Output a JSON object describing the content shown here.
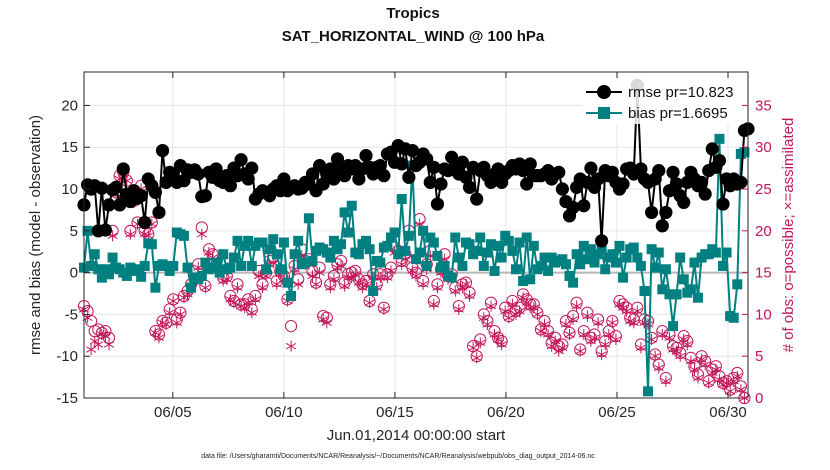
{
  "chart_data": {
    "type": "line",
    "title": "Tropics",
    "subtitle": "SAT_HORIZONTAL_WIND @ 100 hPa",
    "xlabel": "Jun.01,2014 00:00:00 start",
    "ylabel": "rmse and bias (model - observation)",
    "y2label": "# of obs: o=possible; ×=assimilated",
    "footnote": "data file: /Users/gharamti/Documents/NCAR/Reanalysis/~/Documents/NCAR/Reanalysis/webpub/obs_diag_output_2014-06.nc",
    "xlim": [
      1.0,
      30.9
    ],
    "ylim": [
      -15,
      24
    ],
    "y2lim": [
      0,
      39
    ],
    "xticks": [
      5,
      10,
      15,
      20,
      25,
      30
    ],
    "xtick_labels": [
      "06/05",
      "06/10",
      "06/15",
      "06/20",
      "06/25",
      "06/30"
    ],
    "yticks": [
      -15,
      -10,
      -5,
      0,
      5,
      10,
      15,
      20
    ],
    "y2ticks": [
      0,
      5,
      10,
      15,
      20,
      25,
      30,
      35
    ],
    "grid": true,
    "legend": {
      "position": "top-right",
      "entries": [
        "rmse pr=10.823",
        "bias pr=1.6695"
      ]
    },
    "colors": {
      "rmse": "#000000",
      "bias": "#008080",
      "obs": "#c2185b",
      "zero_line": "#b8b8b8",
      "grid": "#e6e6e6"
    },
    "series": [
      {
        "name": "rmse pr=10.823",
        "axis": "left",
        "marker": "circle",
        "values": [
          8.1,
          10.5,
          10.0,
          10.4,
          5.0,
          10.1,
          5.1,
          8.1,
          9.9,
          10.2,
          8.1,
          12.4,
          9.4,
          8.5,
          9.8,
          8.9,
          9.2,
          6.0,
          11.2,
          10.4,
          9.6,
          7.2,
          14.6,
          10.8,
          12.0,
          11.6,
          10.8,
          12.8,
          11.0,
          12.3,
          12.0,
          12.3,
          11.8,
          9.1,
          9.2,
          12.0,
          11.4,
          12.4,
          11.0,
          10.8,
          11.6,
          10.4,
          12.5,
          11.6,
          13.5,
          11.8,
          11.2,
          12.5,
          8.8,
          9.4,
          9.8,
          9.6,
          9.2,
          10.0,
          10.4,
          9.8,
          11.2,
          9.8,
          10.2,
          10.4,
          10.0,
          10.1,
          10.8,
          10.6,
          11.8,
          9.8,
          12.8,
          10.6,
          11.8,
          12.4,
          11.2,
          13.6,
          12.4,
          11.6,
          12.8,
          12.4,
          12.8,
          11.2,
          12.4,
          14.0,
          12.6,
          11.8,
          12.6,
          12.8,
          11.6,
          14.2,
          14.4,
          13.2,
          15.2,
          13.0,
          14.8,
          11.4,
          14.6,
          12.8,
          13.2,
          14.2,
          13.6,
          10.8,
          12.6,
          8.2,
          10.6,
          12.4,
          12.2,
          13.8,
          12.6,
          11.8,
          13.2,
          11.4,
          10.2,
          12.6,
          8.8,
          12.2,
          12.6,
          11.6,
          10.8,
          11.8,
          12.4,
          10.8,
          11.8,
          12.2,
          12.8,
          12.4,
          13.0,
          12.2,
          10.6,
          13.0,
          11.6,
          11.6,
          11.6,
          11.8,
          12.2,
          11.2,
          11.8,
          12.0,
          10.0,
          8.5,
          6.8,
          7.8,
          10.2,
          11.2,
          8.0,
          10.8,
          12.5,
          10.2,
          11.2,
          3.8,
          12.2,
          11.6,
          12.0,
          10.8,
          10.0,
          10.6,
          12.4,
          12.5,
          11.8,
          22.4,
          12.4,
          11.2,
          10.8,
          7.2,
          11.2,
          12.2,
          5.6,
          7.2,
          9.8,
          12.0,
          10.6,
          9.2,
          8.4,
          10.8,
          12.0,
          11.2,
          10.4,
          10.8,
          9.4,
          12.2,
          14.8,
          12.6,
          13.4,
          8.2,
          11.2,
          10.4,
          11.2,
          10.6,
          10.8,
          17.0,
          17.2
        ]
      },
      {
        "name": "bias pr=1.6695",
        "axis": "left",
        "marker": "square",
        "values": [
          0.6,
          5.0,
          0.8,
          2.2,
          0.4,
          -0.6,
          0.4,
          -0.2,
          1.8,
          0.6,
          0.4,
          0.0,
          -0.4,
          0.6,
          0.2,
          0.4,
          -0.5,
          0.8,
          3.5,
          3.4,
          -1.8,
          0.8,
          1.0,
          0.8,
          0.2,
          0.8,
          4.8,
          4.6,
          4.4,
          0.6,
          -1.8,
          -0.6,
          -0.8,
          -0.4,
          1.2,
          0.4,
          0.6,
          1.2,
          0.0,
          2.2,
          0.4,
          0.6,
          1.8,
          3.8,
          0.8,
          3.2,
          3.8,
          0.8,
          3.2,
          3.6,
          3.6,
          0.4,
          2.8,
          4.0,
          2.2,
          0.4,
          3.6,
          -1.2,
          -2.8,
          2.2,
          3.8,
          1.0,
          1.2,
          6.5,
          1.4,
          2.6,
          3.0,
          2.8,
          2.4,
          1.8,
          3.8,
          2.8,
          3.4,
          7.2,
          4.8,
          8.0,
          2.4,
          2.2,
          3.4,
          3.8,
          2.8,
          -2.2,
          1.4,
          1.2,
          3.0,
          3.2,
          4.2,
          4.8,
          2.2,
          8.8,
          2.6,
          4.4,
          12.8,
          1.6,
          2.4,
          5.0,
          0.8,
          4.2,
          3.6,
          2.0,
          0.6,
          0.8,
          -0.4,
          -0.6,
          4.2,
          1.8,
          0.8,
          3.6,
          3.4,
          2.2,
          2.6,
          4.2,
          0.8,
          2.4,
          3.4,
          0.2,
          3.2,
          1.8,
          4.4,
          3.8,
          2.6,
          0.4,
          3.6,
          -1.0,
          4.2,
          -0.8,
          3.2,
          0.4,
          0.8,
          1.8,
          0.2,
          1.8,
          1.2,
          1.4,
          1.6,
          1.0,
          -0.4,
          -1.2,
          2.2,
          1.0,
          3.2,
          1.6,
          2.8,
          1.2,
          2.2,
          2.8,
          0.4,
          1.8,
          2.2,
          1.2,
          3.2,
          -0.6,
          1.8,
          2.8,
          3.0,
          1.8,
          0.8,
          -2.2,
          -14.2,
          2.8,
          0.6,
          2.4,
          -2.0,
          0.4,
          -2.6,
          -6.4,
          -2.6,
          1.8,
          -0.8,
          -2.4,
          -2.0,
          1.2,
          -3.0,
          1.8,
          2.2,
          2.2,
          2.8,
          2.4,
          16.0,
          0.8,
          2.4,
          -5.2,
          -5.4,
          -1.4,
          14.2,
          14.4
        ]
      },
      {
        "name": "obs possible",
        "axis": "right",
        "marker": "circle-open",
        "values": [
          11.0,
          10.4,
          9.2,
          8.0,
          8.2,
          7.8,
          8.0,
          7.2,
          20.0,
          24.6,
          26.6,
          27.0,
          26.0,
          20.0,
          23.6,
          21.0,
          25.4,
          20.0,
          19.6,
          21.0,
          8.0,
          7.6,
          9.2,
          9.0,
          10.6,
          11.8,
          9.4,
          10.2,
          12.2,
          12.8,
          13.6,
          14.2,
          16.0,
          20.4,
          13.4,
          17.8,
          17.2,
          15.8,
          16.2,
          14.4,
          14.6,
          12.2,
          11.6,
          13.6,
          11.2,
          11.2,
          11.8,
          10.6,
          12.2,
          15.2,
          13.6,
          15.0,
          16.4,
          16.8,
          14.0,
          15.2,
          14.6,
          11.8,
          8.6,
          15.8,
          14.2,
          17.8,
          16.4,
          16.6,
          15.2,
          13.8,
          15.6,
          9.8,
          9.6,
          13.6,
          14.6,
          16.0,
          16.4,
          13.8,
          14.8,
          15.0,
          15.2,
          14.2,
          13.6,
          14.0,
          11.6,
          14.8,
          13.6,
          14.8,
          10.8,
          14.8,
          15.6,
          18.0,
          17.6,
          16.4,
          17.2,
          20.0,
          15.6,
          15.0,
          21.4,
          14.0,
          16.0,
          17.6,
          11.6,
          13.6,
          15.4,
          17.2,
          14.6,
          14.8,
          13.2,
          11.0,
          13.6,
          13.8,
          12.6,
          6.2,
          5.0,
          7.0,
          10.0,
          9.2,
          11.4,
          8.0,
          7.2,
          6.8,
          10.8,
          9.8,
          11.6,
          10.4,
          10.8,
          12.4,
          11.8,
          11.2,
          11.2,
          10.2,
          8.2,
          9.2,
          8.0,
          6.6,
          7.2,
          6.2,
          6.4,
          9.2,
          7.8,
          9.8,
          11.4,
          5.8,
          8.0,
          10.2,
          7.2,
          7.6,
          9.4,
          5.6,
          6.8,
          8.0,
          9.2,
          7.4,
          11.6,
          11.2,
          10.8,
          9.6,
          9.4,
          10.8,
          6.4,
          9.4,
          9.2,
          7.2,
          5.2,
          4.0,
          8.0,
          2.4,
          7.6,
          6.2,
          6.0,
          5.4,
          7.4,
          6.8,
          4.8,
          3.8,
          2.8,
          5.0,
          4.4,
          2.0,
          3.4,
          3.8,
          2.6,
          1.8,
          2.0,
          1.0,
          2.4,
          3.0,
          1.4,
          0.0
        ]
      },
      {
        "name": "obs assimilated",
        "axis": "right",
        "marker": "asterisk",
        "values": [
          10.6,
          9.6,
          5.8,
          6.8,
          6.4,
          7.6,
          7.4,
          6.4,
          19.4,
          24.4,
          26.2,
          26.8,
          26.0,
          19.6,
          23.4,
          20.8,
          25.0,
          19.6,
          19.4,
          20.8,
          7.8,
          7.2,
          9.0,
          8.8,
          10.2,
          11.6,
          9.0,
          10.0,
          12.0,
          12.4,
          13.0,
          14.0,
          15.6,
          19.6,
          13.2,
          17.4,
          16.8,
          15.4,
          15.6,
          14.0,
          14.2,
          11.8,
          11.4,
          13.2,
          11.0,
          10.8,
          11.4,
          10.2,
          11.8,
          14.6,
          13.2,
          14.6,
          16.0,
          16.2,
          13.6,
          14.8,
          14.2,
          11.6,
          6.2,
          15.4,
          13.6,
          17.0,
          16.0,
          16.0,
          14.6,
          13.6,
          15.0,
          9.4,
          9.0,
          13.2,
          14.2,
          15.6,
          15.8,
          13.4,
          14.4,
          14.4,
          14.8,
          13.8,
          13.2,
          13.6,
          11.4,
          14.4,
          13.2,
          14.4,
          10.6,
          14.4,
          15.2,
          17.4,
          17.2,
          16.0,
          16.6,
          19.6,
          15.2,
          14.6,
          20.8,
          13.6,
          15.4,
          17.0,
          11.2,
          13.2,
          15.0,
          16.6,
          14.2,
          14.4,
          12.8,
          10.6,
          13.2,
          13.6,
          12.2,
          6.0,
          4.8,
          6.6,
          9.6,
          8.8,
          11.0,
          7.6,
          7.0,
          6.4,
          10.4,
          9.6,
          11.2,
          10.0,
          10.4,
          12.0,
          11.4,
          10.8,
          10.8,
          10.0,
          8.0,
          8.8,
          7.6,
          6.2,
          6.8,
          5.6,
          6.0,
          8.8,
          7.6,
          9.4,
          11.0,
          5.6,
          7.6,
          9.8,
          6.8,
          7.2,
          9.0,
          5.2,
          6.4,
          7.6,
          9.0,
          7.0,
          11.2,
          10.8,
          10.4,
          9.2,
          9.0,
          10.4,
          6.0,
          9.0,
          8.8,
          7.0,
          5.0,
          3.6,
          7.6,
          2.0,
          7.2,
          5.8,
          5.6,
          5.0,
          7.0,
          6.4,
          4.4,
          3.4,
          2.4,
          4.6,
          4.0,
          1.8,
          3.0,
          3.4,
          2.2,
          1.6,
          1.8,
          0.8,
          2.0,
          2.6,
          1.0,
          0.0
        ]
      }
    ]
  }
}
